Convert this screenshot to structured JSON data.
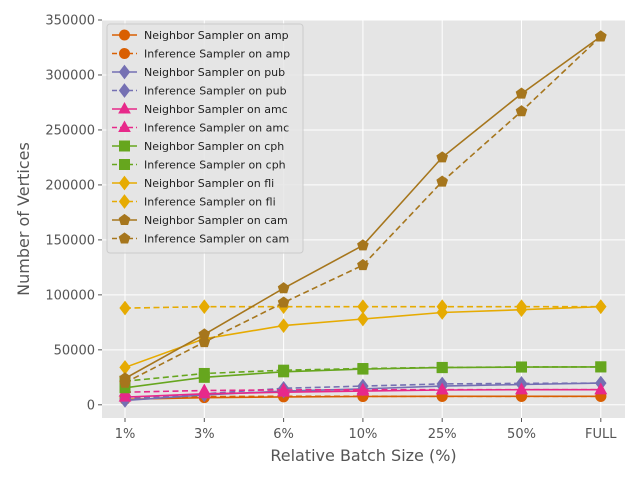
{
  "chart_data": {
    "type": "line",
    "title": "",
    "xlabel": "Relative Batch Size (%)",
    "ylabel": "Number of Vertices",
    "categories": [
      "1%",
      "3%",
      "6%",
      "10%",
      "25%",
      "50%",
      "FULL"
    ],
    "ylim": [
      -12000,
      350000
    ],
    "yticks": [
      0,
      50000,
      100000,
      150000,
      200000,
      250000,
      300000,
      350000
    ],
    "grid": true,
    "legend_position": "upper-left",
    "series": [
      {
        "name": "Neighbor Sampler on amp",
        "color": "#d95f02",
        "style": "solid",
        "marker": "circle",
        "values": [
          5000,
          6500,
          7200,
          7600,
          7700,
          7700,
          7700
        ]
      },
      {
        "name": "Inference Sampler on amp",
        "color": "#d95f02",
        "style": "dashed",
        "marker": "circle",
        "values": [
          6000,
          7500,
          7700,
          7700,
          7700,
          7700,
          7700
        ]
      },
      {
        "name": "Neighbor Sampler on pub",
        "color": "#7570b3",
        "style": "solid",
        "marker": "diamond",
        "values": [
          4000,
          9000,
          12500,
          14500,
          17000,
          18500,
          19700
        ]
      },
      {
        "name": "Inference Sampler on pub",
        "color": "#7570b3",
        "style": "dashed",
        "marker": "diamond",
        "values": [
          5500,
          10000,
          15000,
          17000,
          19000,
          19500,
          19700
        ]
      },
      {
        "name": "Neighbor Sampler on amc",
        "color": "#e7298a",
        "style": "solid",
        "marker": "triangle",
        "values": [
          7000,
          10000,
          11500,
          12500,
          13500,
          13700,
          13750
        ]
      },
      {
        "name": "Inference Sampler on amc",
        "color": "#e7298a",
        "style": "dashed",
        "marker": "triangle",
        "values": [
          11500,
          13000,
          13600,
          13700,
          13750,
          13750,
          13750
        ]
      },
      {
        "name": "Neighbor Sampler on cph",
        "color": "#66a61e",
        "style": "solid",
        "marker": "square",
        "values": [
          15500,
          25000,
          30000,
          32500,
          33800,
          34300,
          34500
        ]
      },
      {
        "name": "Inference Sampler on cph",
        "color": "#66a61e",
        "style": "dashed",
        "marker": "square",
        "values": [
          21500,
          28500,
          31500,
          33000,
          34000,
          34400,
          34500
        ]
      },
      {
        "name": "Neighbor Sampler on fli",
        "color": "#e6ab02",
        "style": "solid",
        "marker": "diamond",
        "values": [
          34000,
          60000,
          72000,
          78000,
          84000,
          86500,
          89250
        ]
      },
      {
        "name": "Inference Sampler on fli",
        "color": "#e6ab02",
        "style": "dashed",
        "marker": "diamond",
        "values": [
          88000,
          89200,
          89250,
          89250,
          89250,
          89250,
          89250
        ]
      },
      {
        "name": "Neighbor Sampler on cam",
        "color": "#a6761d",
        "style": "solid",
        "marker": "pentagon",
        "values": [
          24000,
          64000,
          106000,
          145000,
          225000,
          283000,
          335000
        ]
      },
      {
        "name": "Inference Sampler on cam",
        "color": "#a6761d",
        "style": "dashed",
        "marker": "pentagon",
        "values": [
          20000,
          57000,
          93000,
          127000,
          203000,
          267000,
          335000
        ]
      }
    ]
  }
}
